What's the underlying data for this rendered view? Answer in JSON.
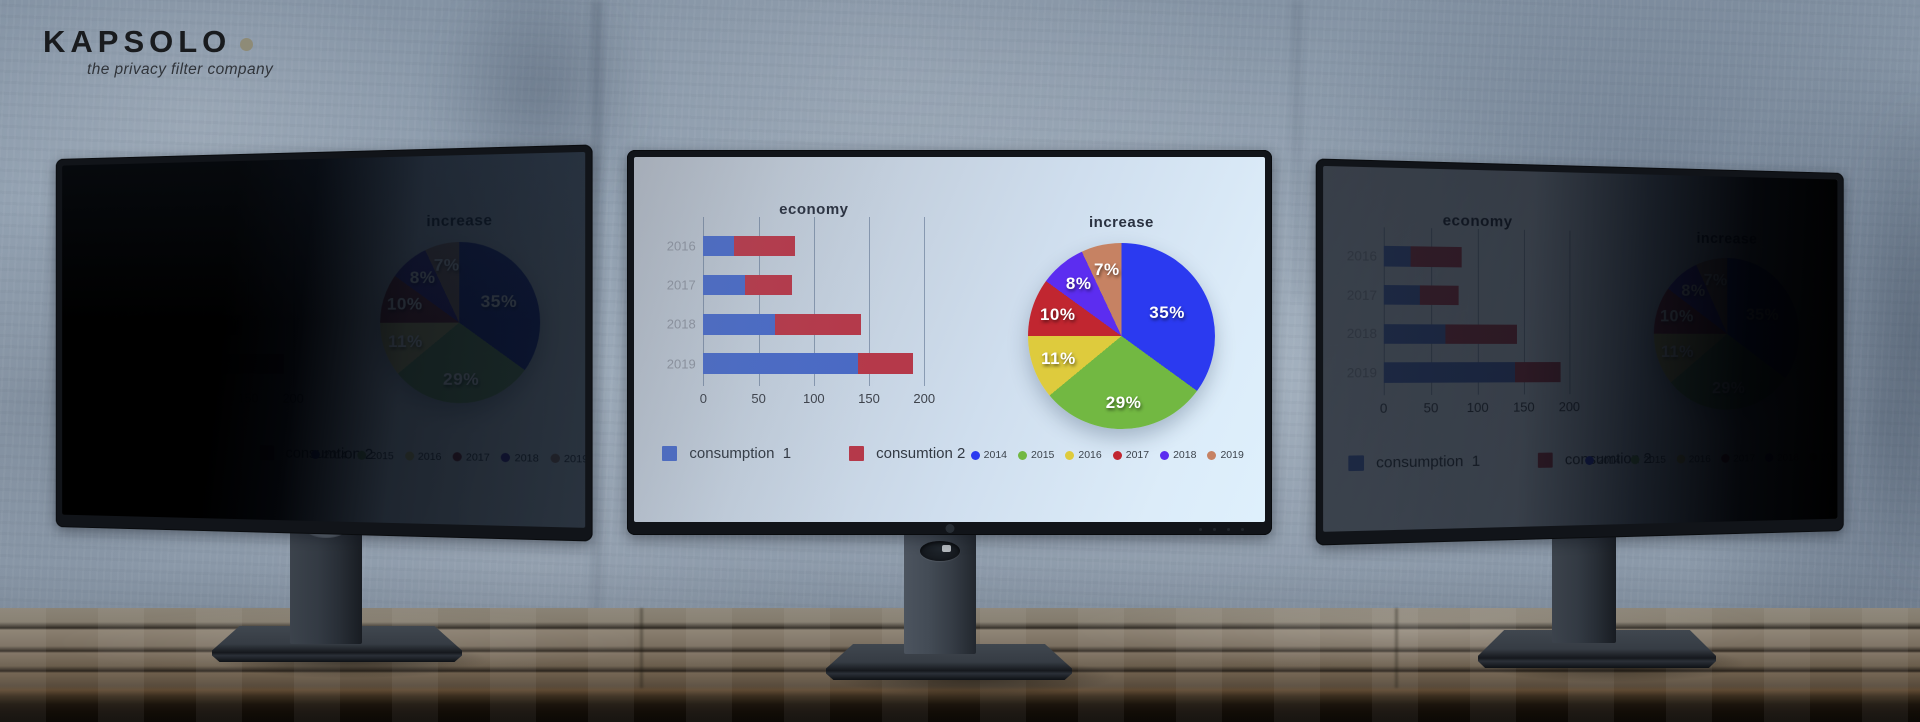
{
  "brand": {
    "logo_text": "KAPSOLO",
    "tagline": "the privacy filter company",
    "dot_color": "#8e8b77"
  },
  "monitors": [
    {
      "id": "left",
      "appearance": "privacy filter dimmed, viewed from angle, screen mostly black with faint pie chart"
    },
    {
      "id": "center",
      "appearance": "bright, fully readable dashboard"
    },
    {
      "id": "right",
      "appearance": "privacy filter dimmed, bar chart faintly readable, pie side nearly black"
    }
  ],
  "chart_data": [
    {
      "type": "bar",
      "title": "economy",
      "orientation": "horizontal",
      "categories": [
        "2016",
        "2017",
        "2018",
        "2019"
      ],
      "series": [
        {
          "name": "consumption  1",
          "color": "#4a6ac5",
          "values": [
            28,
            38,
            65,
            140
          ]
        },
        {
          "name": "consumtion 2",
          "color": "#b5394a",
          "values": [
            55,
            42,
            78,
            50
          ]
        }
      ],
      "stacked": true,
      "x_ticks": [
        0,
        50,
        100,
        150,
        200
      ],
      "xlim": [
        0,
        200
      ],
      "grid": true,
      "legend_position": "bottom"
    },
    {
      "type": "pie",
      "title": "increase",
      "labels": [
        "2014",
        "2015",
        "2016",
        "2017",
        "2018",
        "2019"
      ],
      "values": [
        35,
        29,
        11,
        10,
        8,
        7
      ],
      "display_labels": [
        "35%",
        "29%",
        "11%",
        "10%",
        "8%",
        "7%"
      ],
      "colors": [
        "#2b3af0",
        "#72b842",
        "#decb3d",
        "#c12630",
        "#5c2df0",
        "#c68263"
      ],
      "start_angle_deg": 0,
      "direction": "clockwise",
      "legend_position": "bottom"
    }
  ],
  "palette": {
    "wall": "#92a1b1",
    "table_wood": "#7a6f60",
    "table_edge": "#1c150d",
    "bezel": "#111419",
    "stand": "#3c434c",
    "screen_bg_bright": "#cfdeee"
  }
}
